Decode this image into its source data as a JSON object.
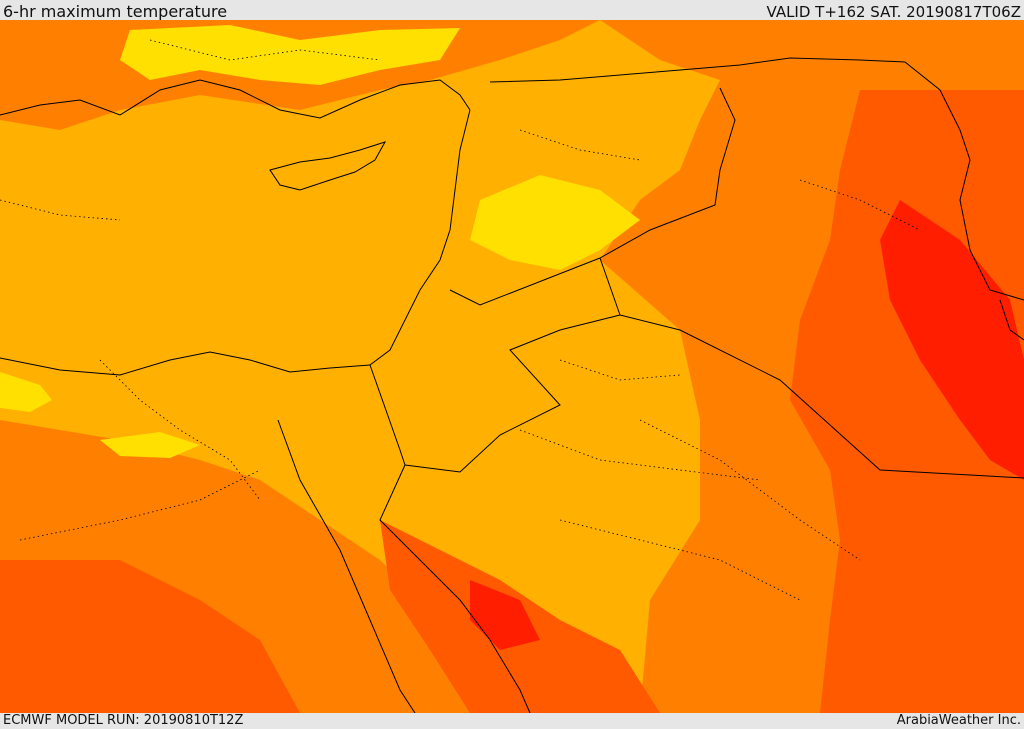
{
  "header": {
    "title": "6-hr maximum temperature",
    "valid": "VALID T+162 SAT. 20190817T06Z"
  },
  "footer": {
    "model_run": "ECMWF MODEL RUN: 20190810T12Z",
    "credit": "ArabiaWeather Inc."
  },
  "colors": {
    "temp_mild": "#FFE000",
    "temp_warm": "#FFB000",
    "temp_hot": "#FF8000",
    "temp_very_hot": "#FF5A00",
    "temp_extreme": "#FF1E00",
    "borders": "#000000"
  }
}
